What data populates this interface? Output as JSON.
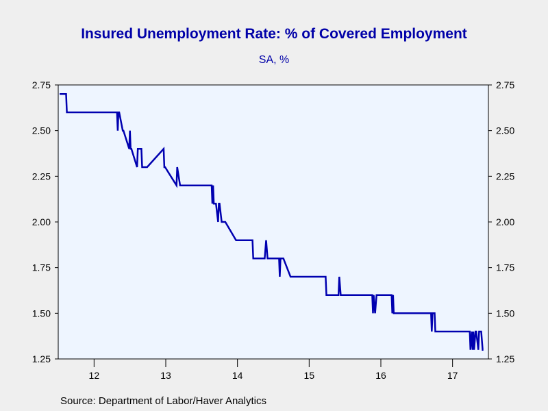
{
  "chart_data": {
    "type": "line",
    "title": "Insured Unemployment Rate: % of Covered Employment",
    "subtitle": "SA, %",
    "source": "Source:  Department of Labor/Haver Analytics",
    "ylim": [
      1.25,
      2.75
    ],
    "y_ticks": [
      "2.75",
      "2.50",
      "2.25",
      "2.00",
      "1.75",
      "1.50",
      "1.25"
    ],
    "x_ticks": [
      "12",
      "13",
      "14",
      "15",
      "16",
      "17"
    ],
    "xlim": [
      2011.5,
      2017.5
    ],
    "grid": false,
    "plot_background": "#eef5ff",
    "line_color": "#0000b0",
    "text_color": "#0000a8",
    "series": [
      {
        "x": [
          2011.52,
          2011.61,
          2011.62,
          2012.32,
          2012.33,
          2012.34,
          2012.35,
          2012.4,
          2012.41,
          2012.49,
          2012.5,
          2012.51,
          2012.52,
          2012.6,
          2012.61,
          2012.62,
          2012.66,
          2012.67,
          2012.73,
          2012.74,
          2012.97,
          2012.98,
          2012.99,
          2013.15,
          2013.16,
          2013.2,
          2013.21,
          2013.24,
          2013.25,
          2013.64,
          2013.65,
          2013.66,
          2013.67,
          2013.7,
          2013.73,
          2013.74,
          2013.75,
          2013.78,
          2013.79,
          2013.81,
          2013.82,
          2013.83,
          2013.98,
          2014.01,
          2014.02,
          2014.21,
          2014.22,
          2014.38,
          2014.4,
          2014.42,
          2014.58,
          2014.59,
          2014.6,
          2014.62,
          2014.64,
          2014.74,
          2014.75,
          2015.23,
          2015.24,
          2015.41,
          2015.42,
          2015.44,
          2015.45,
          2015.88,
          2015.89,
          2015.9,
          2015.92,
          2015.94,
          2015.95,
          2016.15,
          2016.16,
          2016.17,
          2016.18,
          2016.7,
          2016.71,
          2016.72,
          2016.75,
          2016.76,
          2017.24,
          2017.25,
          2017.27,
          2017.28,
          2017.29,
          2017.3,
          2017.32,
          2017.33,
          2017.36,
          2017.37,
          2017.38,
          2017.4,
          2017.42,
          2017.43
        ],
        "values": [
          2.7,
          2.7,
          2.6,
          2.6,
          2.5,
          2.6,
          2.6,
          2.5,
          2.5,
          2.4,
          2.5,
          2.4,
          2.4,
          2.3,
          2.4,
          2.4,
          2.4,
          2.3,
          2.3,
          2.3,
          2.4,
          2.3,
          2.3,
          2.2,
          2.3,
          2.2,
          2.2,
          2.2,
          2.2,
          2.2,
          2.1,
          2.2,
          2.1,
          2.1,
          2.0,
          2.1,
          2.1,
          2.0,
          2.0,
          2.0,
          2.0,
          2.0,
          1.9,
          1.9,
          1.9,
          1.9,
          1.8,
          1.8,
          1.9,
          1.8,
          1.8,
          1.7,
          1.8,
          1.8,
          1.8,
          1.7,
          1.7,
          1.7,
          1.6,
          1.6,
          1.7,
          1.6,
          1.6,
          1.6,
          1.5,
          1.6,
          1.5,
          1.6,
          1.6,
          1.6,
          1.5,
          1.6,
          1.5,
          1.5,
          1.4,
          1.5,
          1.5,
          1.4,
          1.4,
          1.3,
          1.4,
          1.3,
          1.4,
          1.3,
          1.4,
          1.4,
          1.3,
          1.4,
          1.4,
          1.4,
          1.3,
          1.3
        ]
      }
    ]
  }
}
